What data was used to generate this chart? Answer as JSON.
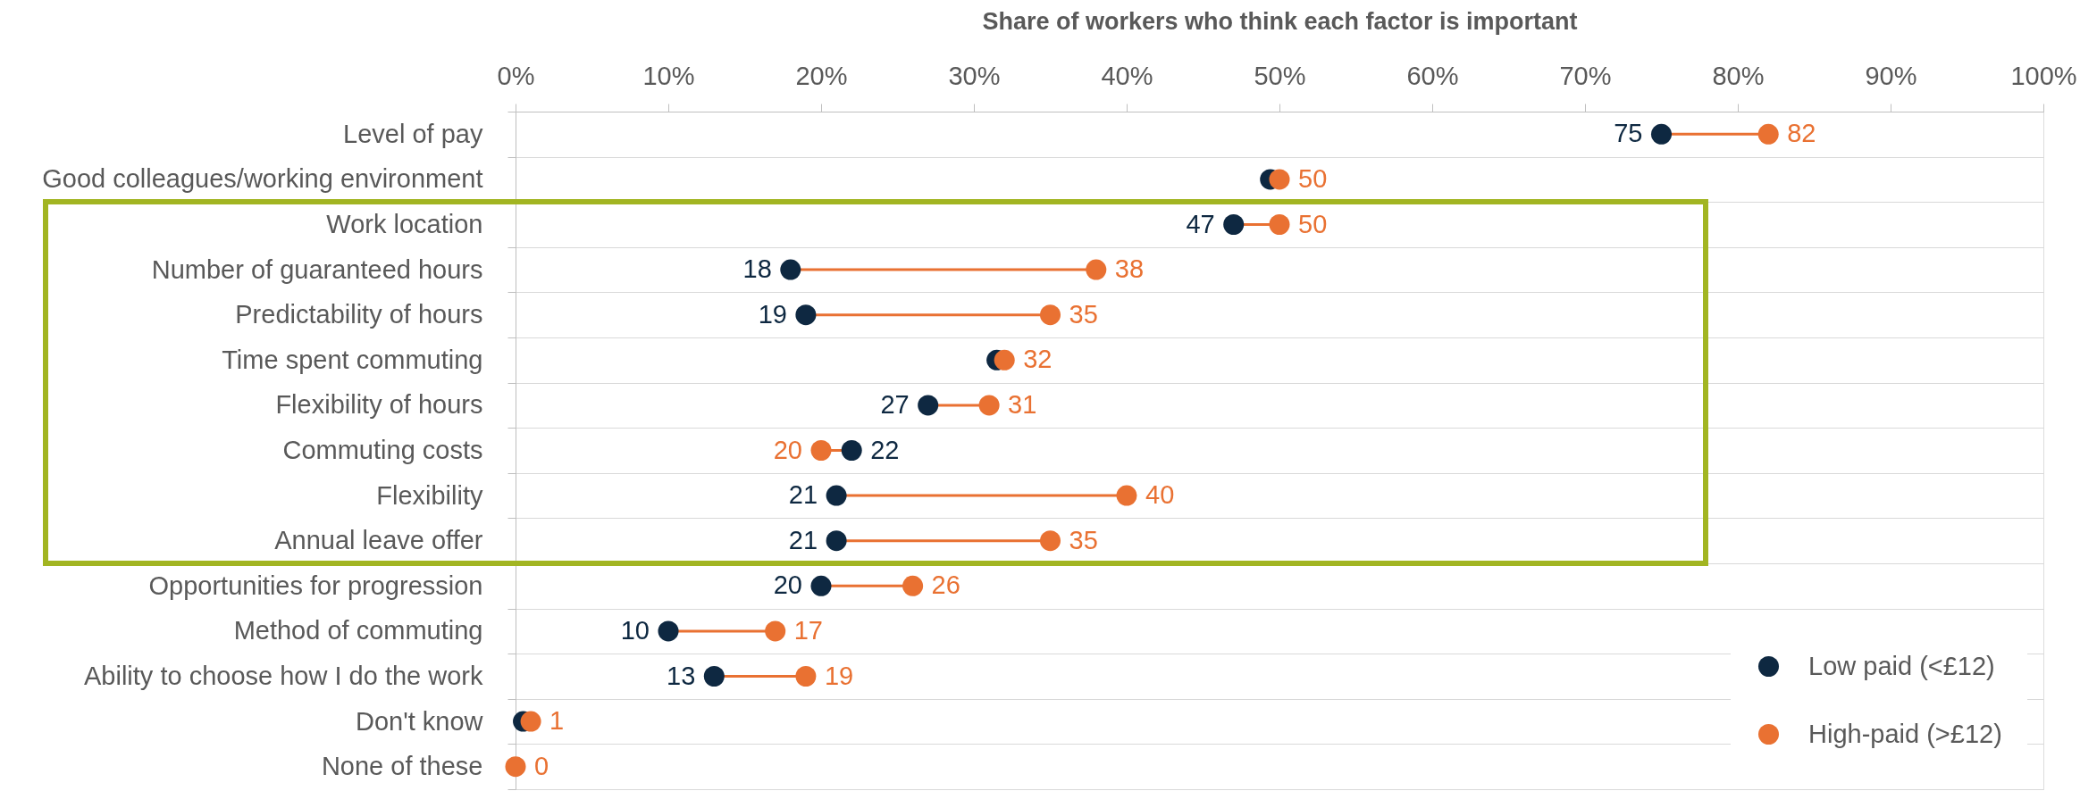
{
  "chart_data": {
    "type": "scatter",
    "orientation": "horizontal",
    "xlabel": "Share of workers who think each factor is important",
    "categories": [
      "Level of pay",
      "Good colleagues/working environment",
      "Work location",
      "Number of guaranteed hours",
      "Predictability of hours",
      "Time spent commuting",
      "Flexibility of hours",
      "Commuting costs",
      "Flexibility",
      "Annual leave offer",
      "Opportunities for progression",
      "Method of commuting",
      "Ability to choose how I do the work",
      "Don't know",
      "None of these"
    ],
    "series": [
      {
        "name": "Low paid (<£12)",
        "color": "#0e2841",
        "values": [
          75,
          49.4,
          47,
          18,
          19,
          31.5,
          27,
          22,
          21,
          21,
          20,
          10,
          13,
          0.5,
          null
        ],
        "value_labels": [
          "75",
          null,
          "47",
          "18",
          "19",
          null,
          "27",
          "22",
          "21",
          "21",
          "20",
          "10",
          "13",
          null,
          null
        ]
      },
      {
        "name": "High-paid (>£12)",
        "color": "#e97132",
        "values": [
          82,
          50,
          50,
          38,
          35,
          32,
          31,
          20,
          40,
          35,
          26,
          17,
          19,
          1,
          0
        ],
        "value_labels": [
          "82",
          "50",
          "50",
          "38",
          "35",
          "32",
          "31",
          "20",
          "40",
          "35",
          "26",
          "17",
          "19",
          "1",
          "0"
        ]
      }
    ],
    "xlim": [
      0,
      100
    ],
    "xticks": [
      {
        "value": 0,
        "label": "0%"
      },
      {
        "value": 10,
        "label": "10%"
      },
      {
        "value": 20,
        "label": "20%"
      },
      {
        "value": 30,
        "label": "30%"
      },
      {
        "value": 40,
        "label": "40%"
      },
      {
        "value": 50,
        "label": "50%"
      },
      {
        "value": 60,
        "label": "60%"
      },
      {
        "value": 70,
        "label": "70%"
      },
      {
        "value": 80,
        "label": "80%"
      },
      {
        "value": 90,
        "label": "90%"
      },
      {
        "value": 100,
        "label": "100%"
      }
    ],
    "grid": "y",
    "legend": "bottom right",
    "marker": "circle"
  }
}
